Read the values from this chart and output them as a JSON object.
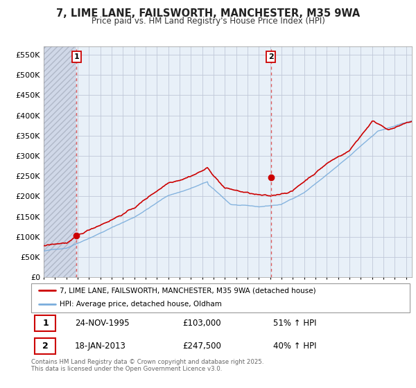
{
  "title": "7, LIME LANE, FAILSWORTH, MANCHESTER, M35 9WA",
  "subtitle": "Price paid vs. HM Land Registry's House Price Index (HPI)",
  "ylabel_ticks": [
    "£0",
    "£50K",
    "£100K",
    "£150K",
    "£200K",
    "£250K",
    "£300K",
    "£350K",
    "£400K",
    "£450K",
    "£500K",
    "£550K"
  ],
  "ytick_vals": [
    0,
    50000,
    100000,
    150000,
    200000,
    250000,
    300000,
    350000,
    400000,
    450000,
    500000,
    550000
  ],
  "ylim": [
    0,
    570000
  ],
  "xlim_start": 1993.0,
  "xlim_end": 2025.5,
  "sale1_x": 1995.9,
  "sale1_price": 103000,
  "sale2_x": 2013.05,
  "sale2_price": 247500,
  "red_line_color": "#cc0000",
  "blue_line_color": "#7aaddc",
  "vline_color": "#e06060",
  "marker_color": "#cc0000",
  "plot_bg_color": "#e8f0f8",
  "hatch_facecolor": "#d0d8e8",
  "grid_color": "#c0c8d8",
  "legend_label_red": "7, LIME LANE, FAILSWORTH, MANCHESTER, M35 9WA (detached house)",
  "legend_label_blue": "HPI: Average price, detached house, Oldham",
  "sale1_label": "1",
  "sale2_label": "2",
  "sale1_info": "24-NOV-1995",
  "sale1_price_str": "£103,000",
  "sale1_hpi": "51% ↑ HPI",
  "sale2_info": "18-JAN-2013",
  "sale2_price_str": "£247,500",
  "sale2_hpi": "40% ↑ HPI",
  "footer": "Contains HM Land Registry data © Crown copyright and database right 2025.\nThis data is licensed under the Open Government Licence v3.0.",
  "background_color": "#ffffff"
}
